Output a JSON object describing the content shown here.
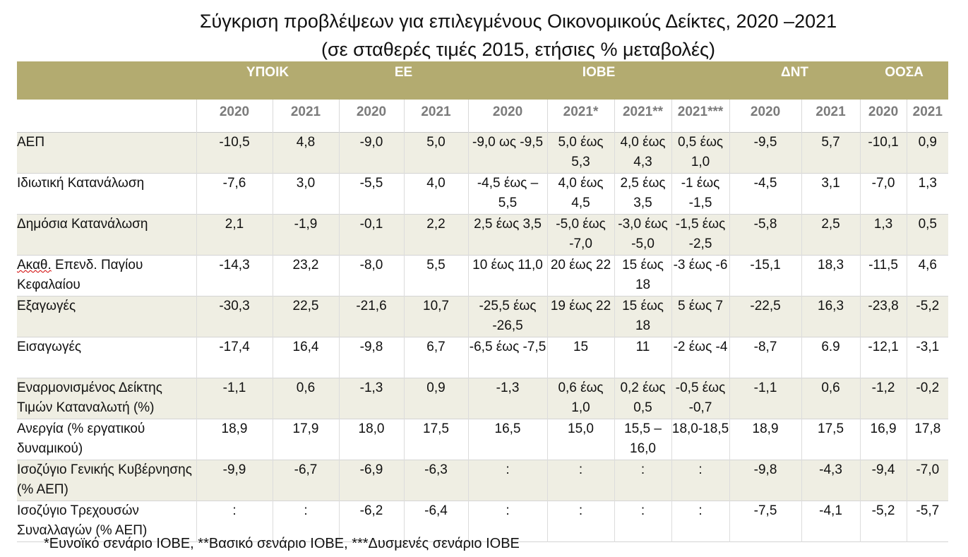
{
  "title": {
    "line1": "Σύγκριση προβλέψεων για επιλεγμένους Οικονομικούς Δείκτες, 2020 –2021",
    "line2": "(σε σταθερές τιμές 2015, ετήσιες % μεταβολές)"
  },
  "groups": [
    "ΥΠΟΙΚ",
    "ΕΕ",
    "ΙΟΒΕ",
    "ΔΝΤ",
    "ΟΟΣΑ"
  ],
  "years": [
    "2020",
    "2021",
    "2020",
    "2021",
    "2020",
    "2021*",
    "2021**",
    "2021***",
    "2020",
    "2021",
    "2020",
    "2021"
  ],
  "rows": [
    {
      "label": "ΑΕΠ",
      "cells": [
        "-10,5",
        "4,8",
        "-9,0",
        "5,0",
        "-9,0 ως -9,5",
        "5,0 έως 5,3",
        "4,0 έως 4,3",
        "0,5 έως 1,0",
        "-9,5",
        "5,7",
        "-10,1",
        "0,9"
      ]
    },
    {
      "label": "Ιδιωτική Κατανάλωση",
      "cells": [
        "-7,6",
        "3,0",
        "-5,5",
        "4,0",
        "-4,5 έως – 5,5",
        "4,0 έως 4,5",
        "2,5 έως 3,5",
        "-1 έως -1,5",
        "-4,5",
        "3,1",
        "-7,0",
        "1,3"
      ]
    },
    {
      "label": "Δημόσια Κατανάλωση",
      "cells": [
        "2,1",
        "-1,9",
        "-0,1",
        "2,2",
        "2,5 έως 3,5",
        "-5,0 έως -7,0",
        "-3,0 έως -5,0",
        "-1,5 έως -2,5",
        "-5,8",
        "2,5",
        "1,3",
        "0,5"
      ]
    },
    {
      "label_a": "Ακαθ.",
      "label_b": " Επενδ. Παγίου Κεφαλαίου",
      "cells": [
        "-14,3",
        "23,2",
        "-8,0",
        "5,5",
        "10 έως 11,0",
        "20 έως 22",
        "15 έως 18",
        "-3 έως -6",
        "-15,1",
        "18,3",
        "-11,5",
        "4,6"
      ]
    },
    {
      "label": "Εξαγωγές",
      "cells": [
        "-30,3",
        "22,5",
        "-21,6",
        "10,7",
        "-25,5 έως -26,5",
        "19 έως 22",
        "15 έως 18",
        "5 έως 7",
        "-22,5",
        "16,3",
        "-23,8",
        "-5,2"
      ]
    },
    {
      "label": "Εισαγωγές",
      "cells": [
        "-17,4",
        "16,4",
        "-9,8",
        "6,7",
        "-6,5 έως -7,5",
        "15",
        "11",
        "-2 έως -4",
        "-8,7",
        "6.9",
        "-12,1",
        "-3,1"
      ]
    },
    {
      "label": "Εναρμονισμένος Δείκτης Τιμών Καταναλωτή (%)",
      "cells": [
        "-1,1",
        "0,6",
        "-1,3",
        "0,9",
        "-1,3",
        "0,6 έως 1,0",
        "0,2 έως 0,5",
        "-0,5 έως -0,7",
        "-1,1",
        "0,6",
        "-1,2",
        "-0,2"
      ]
    },
    {
      "label": "Ανεργία (% εργατικού δυναμικού)",
      "cells": [
        "18,9",
        "17,9",
        "18,0",
        "17,5",
        "16,5",
        "15,0",
        "15,5 – 16,0",
        "18,0-18,5",
        "18,9",
        "17,5",
        "16,9",
        "17,8"
      ]
    },
    {
      "label": "Ισοζύγιο Γενικής Κυβέρνησης (% ΑΕΠ)",
      "cells": [
        "-9,9",
        "-6,7",
        "-6,9",
        "-6,3",
        ":",
        ":",
        ":",
        ":",
        "-9,8",
        "-4,3",
        "-9,4",
        "-7,0"
      ]
    },
    {
      "label": "Ισοζύγιο Τρεχουσών Συναλλαγών (% ΑΕΠ)",
      "cells": [
        ":",
        ":",
        "-6,2",
        "-6,4",
        ":",
        ":",
        ":",
        ":",
        "-7,5",
        "-4,1",
        "-5,2",
        "-5,7"
      ]
    }
  ],
  "footnote": "*Ευνοϊκό σενάριο ΙΟΒΕ, **Βασικό σενάριο ΙΟΒΕ, ***Δυσμενές σενάριο ΙΟΒΕ",
  "colors": {
    "header_band": "#b3ab70",
    "row_shade": "#efeee3",
    "year_text": "#7b7b7b"
  }
}
